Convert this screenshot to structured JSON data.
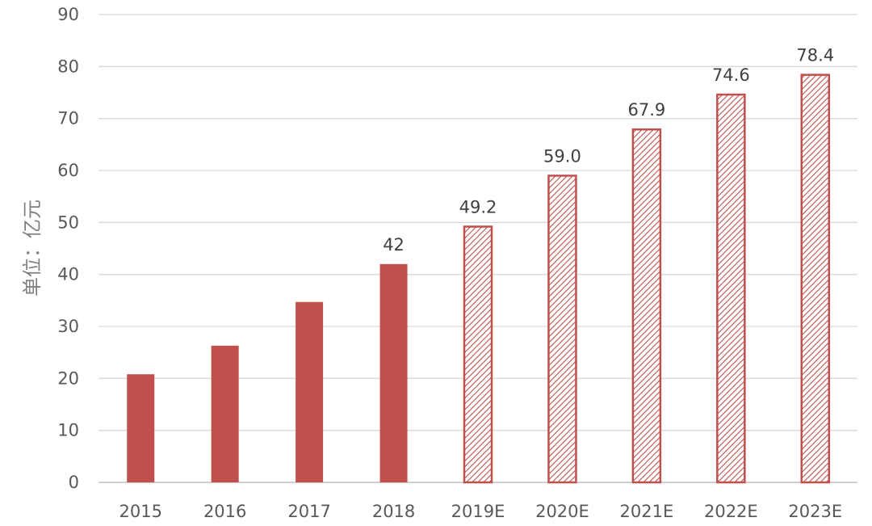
{
  "chart_data": {
    "type": "bar",
    "categories": [
      "2015",
      "2016",
      "2017",
      "2018",
      "2019E",
      "2020E",
      "2021E",
      "2022E",
      "2023E"
    ],
    "values": [
      20.8,
      26.3,
      34.7,
      42,
      49.2,
      59.0,
      67.9,
      74.6,
      78.4
    ],
    "data_labels": [
      "",
      "",
      "",
      "42",
      "49.2",
      "59.0",
      "67.9",
      "74.6",
      "78.4"
    ],
    "bar_fill": [
      "solid",
      "solid",
      "solid",
      "solid",
      "hatched",
      "hatched",
      "hatched",
      "hatched",
      "hatched"
    ],
    "title": "",
    "xlabel": "",
    "ylabel": "单位：亿元",
    "ylim": [
      0,
      90
    ],
    "yticks": [
      "0",
      "10",
      "20",
      "30",
      "40",
      "50",
      "60",
      "70",
      "80",
      "90"
    ],
    "grid": true,
    "legend": "none",
    "colors": {
      "bar": "#c0504d",
      "grid": "#d9d9d9",
      "axis": "#bfbfbf",
      "tick_text": "#595959",
      "label_text": "#404040"
    }
  }
}
